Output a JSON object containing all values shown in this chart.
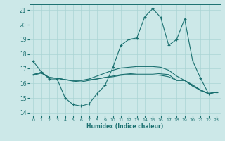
{
  "xlabel": "Humidex (Indice chaleur)",
  "xlim": [
    -0.5,
    23.5
  ],
  "ylim": [
    13.8,
    21.4
  ],
  "yticks": [
    14,
    15,
    16,
    17,
    18,
    19,
    20,
    21
  ],
  "xticks": [
    0,
    1,
    2,
    3,
    4,
    5,
    6,
    7,
    8,
    9,
    10,
    11,
    12,
    13,
    14,
    15,
    16,
    17,
    18,
    19,
    20,
    21,
    22,
    23
  ],
  "bg_color": "#cce8e8",
  "grid_color": "#aad4d4",
  "line_color": "#1a7070",
  "line1_x": [
    0,
    1,
    2,
    3,
    4,
    5,
    6,
    7,
    8,
    9,
    10,
    11,
    12,
    13,
    14,
    15,
    16,
    17,
    18,
    19,
    20,
    21,
    22,
    23
  ],
  "line1_y": [
    17.5,
    16.8,
    16.3,
    16.3,
    15.0,
    14.55,
    14.45,
    14.6,
    15.3,
    15.85,
    17.1,
    18.6,
    19.0,
    19.1,
    20.55,
    21.1,
    20.5,
    18.6,
    19.0,
    20.4,
    17.55,
    16.35,
    15.3,
    15.4
  ],
  "line2_x": [
    0,
    1,
    2,
    3,
    4,
    5,
    6,
    7,
    8,
    9,
    10,
    11,
    12,
    13,
    14,
    15,
    16,
    17,
    18,
    19,
    20,
    21,
    22,
    23
  ],
  "line2_y": [
    16.6,
    16.75,
    16.4,
    16.35,
    16.25,
    16.2,
    16.2,
    16.25,
    16.3,
    16.4,
    16.5,
    16.6,
    16.65,
    16.7,
    16.7,
    16.7,
    16.65,
    16.6,
    16.2,
    16.2,
    15.9,
    15.55,
    15.3,
    15.4
  ],
  "line3_x": [
    0,
    1,
    2,
    3,
    4,
    5,
    6,
    7,
    8,
    9,
    10,
    11,
    12,
    13,
    14,
    15,
    16,
    17,
    18,
    19,
    20,
    21,
    22,
    23
  ],
  "line3_y": [
    16.6,
    16.75,
    16.4,
    16.35,
    16.25,
    16.2,
    16.2,
    16.3,
    16.5,
    16.7,
    16.9,
    17.05,
    17.1,
    17.15,
    17.15,
    17.15,
    17.1,
    16.9,
    16.5,
    16.2,
    15.8,
    15.55,
    15.3,
    15.4
  ],
  "line4_x": [
    0,
    1,
    2,
    3,
    4,
    5,
    6,
    7,
    8,
    9,
    10,
    11,
    12,
    13,
    14,
    15,
    16,
    17,
    18,
    19,
    20,
    21,
    22,
    23
  ],
  "line4_y": [
    16.55,
    16.7,
    16.4,
    16.35,
    16.25,
    16.15,
    16.1,
    16.2,
    16.3,
    16.4,
    16.45,
    16.55,
    16.6,
    16.6,
    16.6,
    16.6,
    16.55,
    16.45,
    16.2,
    16.2,
    15.85,
    15.5,
    15.3,
    15.4
  ]
}
